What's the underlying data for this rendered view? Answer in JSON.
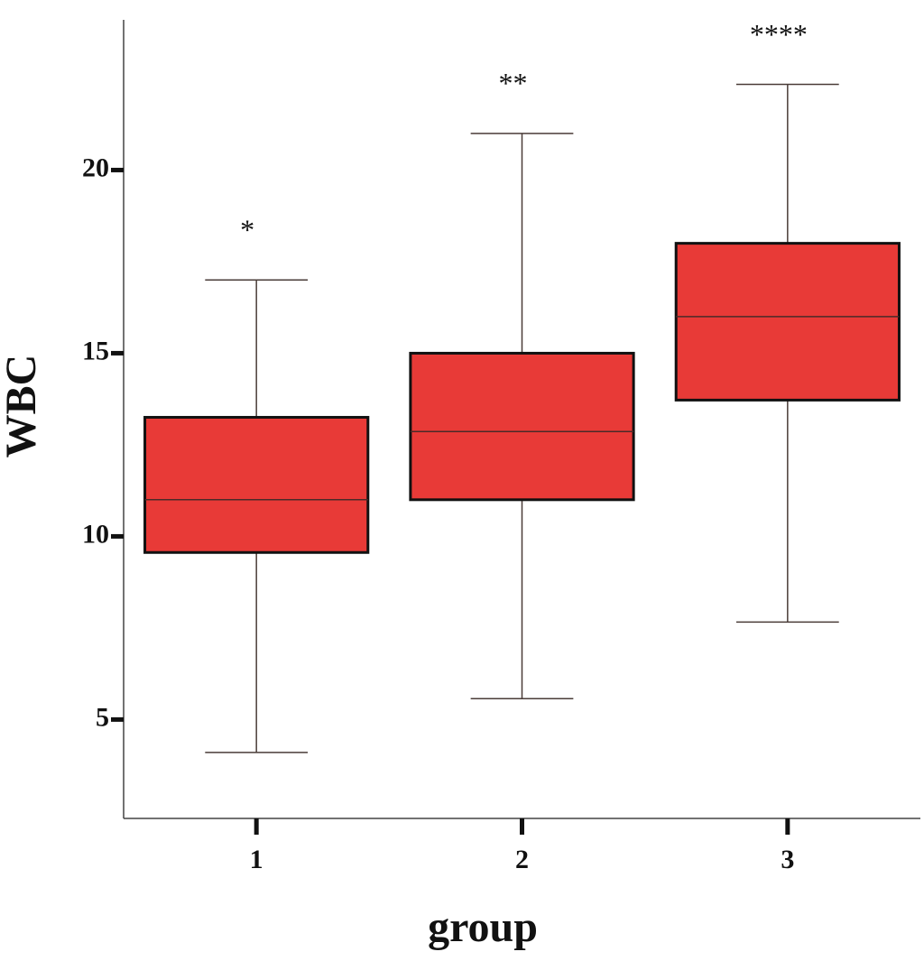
{
  "chart_data": {
    "type": "box",
    "x_label": "group",
    "y_label": "WBC",
    "categories": [
      "1",
      "2",
      "3"
    ],
    "boxes": [
      {
        "min": 4.1,
        "q1": 9.56,
        "median": 11,
        "q3": 13.25,
        "max": 17
      },
      {
        "min": 5.57,
        "q1": 11,
        "median": 12.86,
        "q3": 15,
        "max": 21
      },
      {
        "min": 7.66,
        "q1": 13.72,
        "median": 16,
        "q3": 18,
        "max": 22.34
      }
    ],
    "annotations": [
      "*",
      "**",
      "****"
    ],
    "color": "#e83a37",
    "ylim": [
      2.3,
      24.1
    ],
    "yticks": [
      5,
      10,
      15,
      20
    ]
  }
}
